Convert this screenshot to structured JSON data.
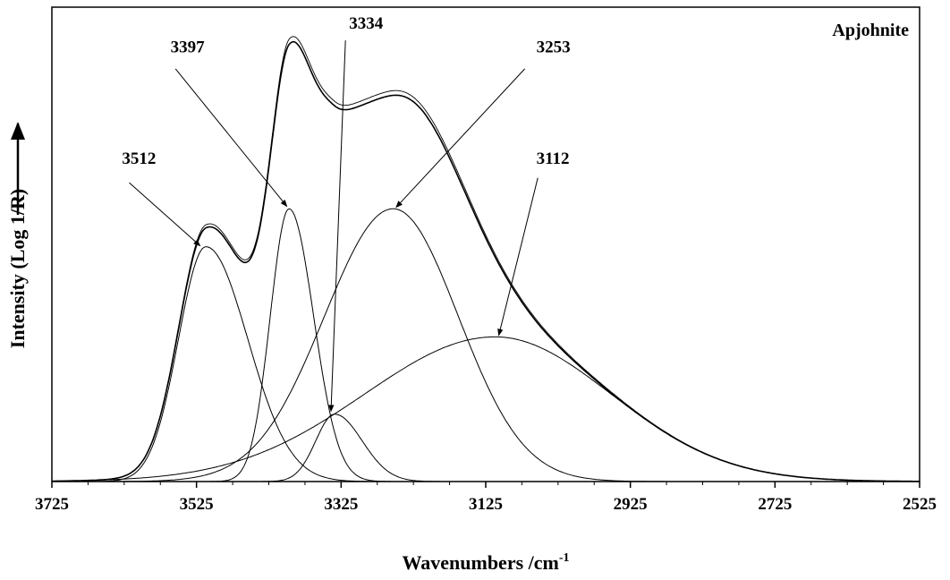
{
  "chart_data": {
    "type": "line",
    "title": "Apjohnite",
    "xlabel": "Wavenumbers /cm",
    "xlabel_superscript": "-1",
    "ylabel": "Intensity (Log 1/R)",
    "xlim": [
      3725,
      2525
    ],
    "x_reversed": true,
    "ylim": [
      0,
      1.0
    ],
    "x_ticks": [
      3725,
      3525,
      3325,
      3125,
      2925,
      2725,
      2525
    ],
    "x_tick_labels": [
      "3725",
      "3525",
      "3325",
      "3125",
      "2925",
      "2725",
      "2525"
    ],
    "grid": false,
    "series": [
      {
        "label": "3512",
        "center": 3512,
        "height": 0.495,
        "sigma_left": 38,
        "sigma_right": 58
      },
      {
        "label": "3397",
        "center": 3397,
        "height": 0.575,
        "sigma_left": 26,
        "sigma_right": 34
      },
      {
        "label": "3334",
        "center": 3334,
        "height": 0.142,
        "sigma_left": 26,
        "sigma_right": 38
      },
      {
        "label": "3253",
        "center": 3253,
        "height": 0.575,
        "sigma_left": 95,
        "sigma_right": 90
      },
      {
        "label": "3112",
        "center": 3112,
        "height": 0.305,
        "sigma_left": 180,
        "sigma_right": 160
      }
    ],
    "annotations": [
      {
        "text": "3512",
        "text_x": 3628,
        "text_y": 0.67,
        "arrow_from": [
          3618,
          0.63
        ],
        "arrow_to": [
          3520,
          0.497
        ]
      },
      {
        "text": "3397",
        "text_x": 3561,
        "text_y": 0.905,
        "arrow_from": [
          3554,
          0.87
        ],
        "arrow_to": [
          3400,
          0.58
        ]
      },
      {
        "text": "3334",
        "text_x": 3314,
        "text_y": 0.955,
        "arrow_from": [
          3319,
          0.93
        ],
        "arrow_to": [
          3339,
          0.148
        ]
      },
      {
        "text": "3253",
        "text_x": 3055,
        "text_y": 0.905,
        "arrow_from": [
          3071,
          0.87
        ],
        "arrow_to": [
          3249,
          0.578
        ]
      },
      {
        "text": "3112",
        "text_x": 3055,
        "text_y": 0.67,
        "arrow_from": [
          3053,
          0.64
        ],
        "arrow_to": [
          3107,
          0.308
        ]
      }
    ]
  }
}
